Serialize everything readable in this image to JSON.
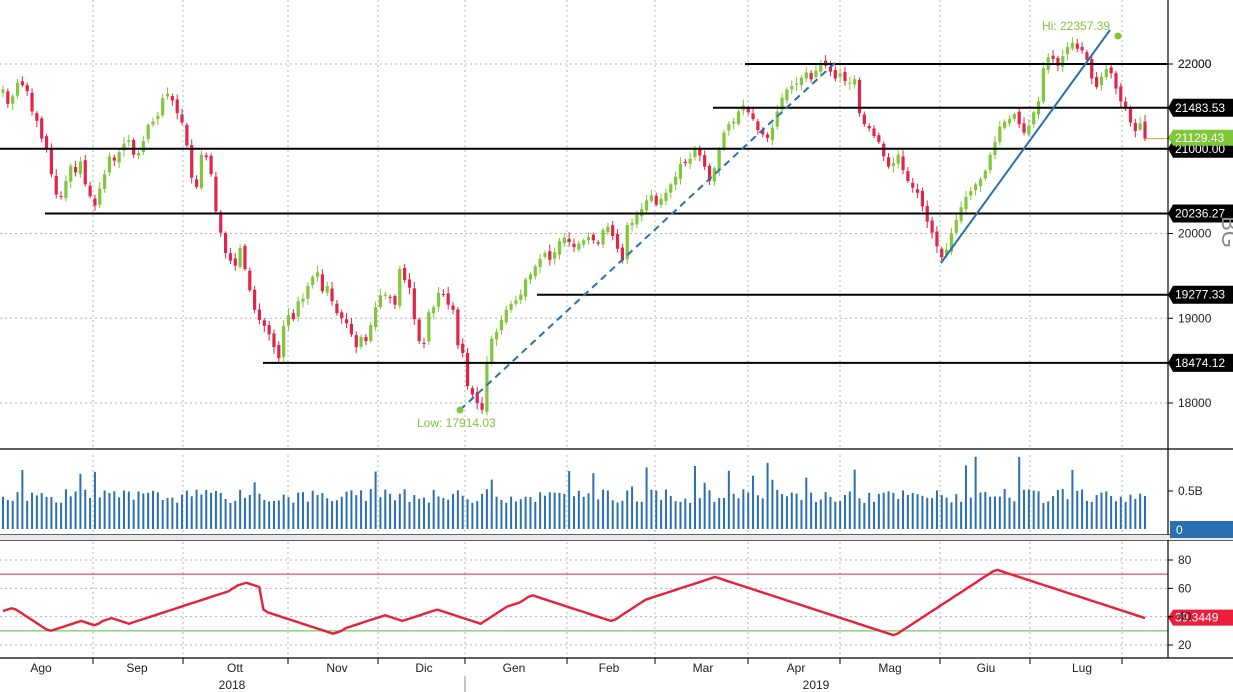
{
  "chart_data": [
    {
      "type": "candlestick",
      "role": "price",
      "x_months": [
        "Ago",
        "Sep",
        "Ott",
        "Nov",
        "Dic",
        "Gen",
        "Feb",
        "Mar",
        "Apr",
        "Mag",
        "Giu",
        "Lug"
      ],
      "x_years": [
        "2018",
        "2019"
      ],
      "y_ticks": [
        "18000",
        "19000",
        "20000",
        "22000"
      ],
      "ylim": [
        17300,
        22900
      ],
      "closes": [
        21700,
        21530,
        21620,
        21780,
        21750,
        21680,
        21440,
        21330,
        21120,
        21000,
        20700,
        20460,
        20440,
        20620,
        20800,
        20720,
        20850,
        20580,
        20440,
        20330,
        20530,
        20700,
        20910,
        20860,
        20960,
        21060,
        21100,
        20930,
        20950,
        21090,
        21280,
        21320,
        21390,
        21600,
        21650,
        21570,
        21420,
        21310,
        21040,
        20660,
        20550,
        20930,
        20900,
        20700,
        20260,
        20010,
        19770,
        19680,
        19620,
        19830,
        19580,
        19330,
        19100,
        18980,
        18910,
        18810,
        18660,
        18530,
        18910,
        19040,
        18990,
        19200,
        19230,
        19380,
        19490,
        19540,
        19320,
        19380,
        19200,
        19060,
        19000,
        18940,
        18810,
        18660,
        18780,
        18730,
        18920,
        19130,
        19270,
        19280,
        19240,
        19160,
        19580,
        19450,
        19360,
        18990,
        18730,
        18700,
        19070,
        19130,
        19300,
        19280,
        19160,
        19100,
        18680,
        18590,
        18200,
        18100,
        18000,
        17920,
        18480,
        18760,
        18840,
        18980,
        19100,
        19170,
        19210,
        19280,
        19460,
        19520,
        19610,
        19700,
        19770,
        19690,
        19780,
        19910,
        19950,
        19900,
        19840,
        19880,
        19920,
        19960,
        19920,
        19880,
        20040,
        20080,
        19970,
        19820,
        19680,
        20100,
        20130,
        20220,
        20290,
        20390,
        20450,
        20340,
        20410,
        20480,
        20580,
        20670,
        20820,
        20830,
        20880,
        20990,
        20920,
        20790,
        20620,
        20770,
        21000,
        21190,
        21290,
        21320,
        21440,
        21510,
        21430,
        21350,
        21220,
        21170,
        21130,
        21250,
        21440,
        21600,
        21700,
        21740,
        21770,
        21840,
        21900,
        21820,
        21920,
        22010,
        21980,
        21910,
        21830,
        21890,
        21800,
        21780,
        21820,
        21420,
        21290,
        21240,
        21150,
        21080,
        20910,
        20790,
        20830,
        20930,
        20750,
        20620,
        20540,
        20480,
        20320,
        20140,
        20010,
        19850,
        19720,
        19810,
        20000,
        20160,
        20310,
        20430,
        20500,
        20580,
        20640,
        20740,
        20930,
        21080,
        21260,
        21320,
        21350,
        21410,
        21290,
        21190,
        21270,
        21430,
        21560,
        21950,
        22080,
        22060,
        21980,
        22090,
        22200,
        22250,
        22180,
        22160,
        22050,
        21830,
        21730,
        21850,
        21940,
        21890,
        21710,
        21560,
        21480,
        21310,
        21210,
        21300,
        21120
      ]
    },
    {
      "type": "bar",
      "role": "volume",
      "tick_labels": [
        "0.5B"
      ],
      "last_value_label": "0"
    },
    {
      "type": "line",
      "role": "oscillator",
      "y_ticks": [
        "20",
        "40",
        "60",
        "80"
      ],
      "ylim": [
        12,
        92
      ],
      "upper_level": 70,
      "lower_level": 30,
      "last_value_label": "39.3449",
      "values": [
        44,
        45,
        46,
        45,
        43,
        41,
        39,
        37,
        35,
        33,
        31,
        30,
        31,
        32,
        33,
        34,
        35,
        36,
        37,
        36,
        35,
        34,
        35,
        37,
        38,
        39,
        38,
        37,
        36,
        35,
        36,
        37,
        38,
        39,
        40,
        41,
        42,
        43,
        44,
        45,
        46,
        47,
        48,
        49,
        50,
        51,
        52,
        53,
        54,
        55,
        56,
        57,
        58,
        60,
        62,
        63,
        64,
        63,
        62,
        61,
        45,
        43,
        42,
        41,
        40,
        39,
        38,
        37,
        36,
        35,
        34,
        33,
        32,
        31,
        30,
        29,
        28,
        29,
        30,
        32,
        33,
        34,
        35,
        36,
        37,
        38,
        39,
        40,
        41,
        40,
        39,
        38,
        37,
        38,
        39,
        40,
        41,
        42,
        43,
        44,
        45,
        44,
        43,
        42,
        41,
        40,
        39,
        38,
        37,
        36,
        35,
        37,
        39,
        41,
        43,
        45,
        47,
        48,
        49,
        50,
        52,
        54,
        55,
        54,
        53,
        52,
        51,
        50,
        49,
        48,
        47,
        46,
        45,
        44,
        43,
        42,
        41,
        40,
        39,
        38,
        37,
        38,
        40,
        42,
        44,
        46,
        48,
        50,
        52,
        53,
        54,
        55,
        56,
        57,
        58,
        59,
        60,
        61,
        62,
        63,
        64,
        65,
        66,
        67,
        68,
        67,
        66,
        65,
        64,
        63,
        62,
        61,
        60,
        59,
        58,
        57,
        56,
        55,
        54,
        53,
        52,
        51,
        50,
        49,
        48,
        47,
        46,
        45,
        44,
        43,
        42,
        41,
        40,
        39,
        38,
        37,
        36,
        35,
        34,
        33,
        32,
        31,
        30,
        29,
        28,
        27,
        28,
        30,
        32,
        34,
        36,
        38,
        40,
        42,
        44,
        46,
        48,
        50,
        52,
        54,
        56,
        58,
        60,
        62,
        64,
        66,
        68,
        70,
        72,
        73,
        72,
        71,
        70,
        69,
        68,
        67,
        66,
        65,
        64,
        63,
        62,
        61,
        60,
        59,
        58,
        57,
        56,
        55,
        54,
        53,
        52,
        51,
        50,
        49,
        48,
        47,
        46,
        45,
        44,
        43,
        42,
        41,
        40,
        39
      ]
    }
  ],
  "levels": [
    "22000",
    "21483.53",
    "21000.00",
    "20236.27",
    "19277.33",
    "18474.12"
  ],
  "last_price_label": "21129.43",
  "annotations": {
    "hi": "Hi: 22357.39",
    "low": "Low: 17914.03"
  },
  "watermark": "BG",
  "colors": {
    "up": "#7ec83a",
    "down": "#e0244a",
    "volume": "#2a6fb0",
    "oscillator": "#e8203c",
    "trend": "#2a6fb0"
  }
}
